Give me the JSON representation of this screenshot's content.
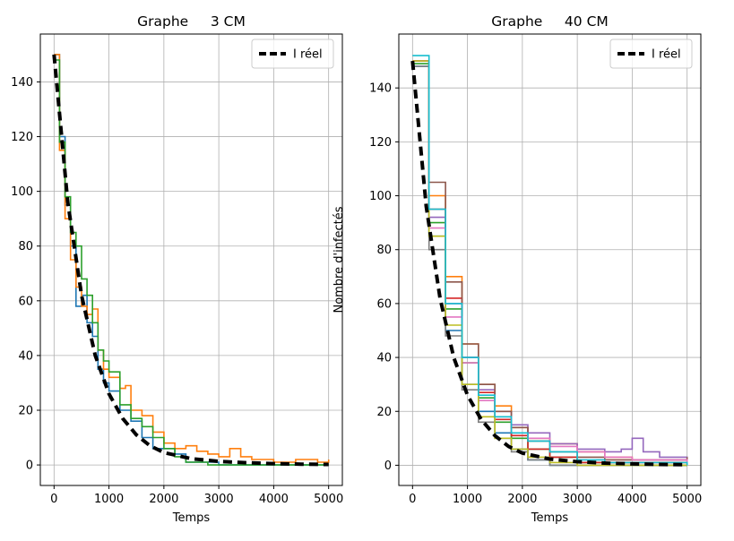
{
  "figure": {
    "background": "#ffffff"
  },
  "chart_data": [
    {
      "type": "line",
      "title": "Graphe     3 CM",
      "xlabel": "Temps",
      "ylabel": "",
      "xlim": [
        -250,
        5250
      ],
      "ylim": [
        -7.5,
        157.5
      ],
      "xticks": [
        0,
        1000,
        2000,
        3000,
        4000,
        5000
      ],
      "yticks": [
        0,
        20,
        40,
        60,
        80,
        100,
        120,
        140
      ],
      "grid": true,
      "legend": {
        "position": "top-right",
        "entries": [
          "I réel"
        ]
      },
      "reference": {
        "name": "I réel",
        "color": "#000000",
        "style": "dashed",
        "x": [
          0,
          250,
          500,
          750,
          1000,
          1250,
          1500,
          1750,
          2000,
          2500,
          3000,
          3500,
          4000,
          4500,
          5000
        ],
        "y": [
          150,
          96,
          62,
          40,
          26,
          17,
          11,
          7,
          4.5,
          2.3,
          1.3,
          0.8,
          0.5,
          0.3,
          0.2
        ]
      },
      "series": [
        {
          "color": "#1f77b4",
          "x": [
            0,
            100,
            200,
            300,
            400,
            500,
            600,
            700,
            800,
            900,
            1000,
            1200,
            1400,
            1600,
            1800,
            2000,
            2200,
            2400,
            2600,
            3000,
            3500,
            4000,
            5000
          ],
          "y": [
            150,
            120,
            95,
            80,
            58,
            62,
            52,
            47,
            35,
            30,
            27,
            20,
            16,
            10,
            6,
            6,
            4,
            1,
            1,
            0,
            0,
            0,
            0
          ]
        },
        {
          "color": "#ff7f0e",
          "x": [
            0,
            100,
            200,
            300,
            400,
            500,
            600,
            700,
            800,
            900,
            1000,
            1200,
            1300,
            1400,
            1600,
            1800,
            2000,
            2200,
            2400,
            2600,
            2800,
            3000,
            3200,
            3400,
            3600,
            3800,
            4000,
            4400,
            4800,
            5000
          ],
          "y": [
            150,
            115,
            90,
            75,
            65,
            58,
            55,
            57,
            42,
            35,
            32,
            28,
            29,
            20,
            18,
            12,
            8,
            6,
            7,
            5,
            4,
            3,
            6,
            3,
            2,
            2,
            1,
            2,
            1,
            2
          ]
        },
        {
          "color": "#2ca02c",
          "x": [
            0,
            100,
            200,
            300,
            400,
            500,
            600,
            700,
            800,
            900,
            1000,
            1200,
            1400,
            1600,
            1800,
            2000,
            2200,
            2400,
            2800,
            3200,
            4000,
            5000
          ],
          "y": [
            148,
            118,
            98,
            85,
            80,
            68,
            62,
            52,
            42,
            38,
            34,
            22,
            17,
            14,
            10,
            6,
            3,
            1,
            0,
            0,
            0,
            0
          ]
        }
      ]
    },
    {
      "type": "line",
      "title": "Graphe     40 CM",
      "xlabel": "Temps",
      "ylabel": "Nombre d'infectés",
      "xlim": [
        -250,
        5250
      ],
      "ylim": [
        -7.5,
        160
      ],
      "xticks": [
        0,
        1000,
        2000,
        3000,
        4000,
        5000
      ],
      "yticks": [
        0,
        20,
        40,
        60,
        80,
        100,
        120,
        140
      ],
      "grid": true,
      "legend": {
        "position": "top-right",
        "entries": [
          "I réel"
        ]
      },
      "reference": {
        "name": "I réel",
        "color": "#000000",
        "style": "dashed",
        "x": [
          0,
          250,
          500,
          750,
          1000,
          1250,
          1500,
          1750,
          2000,
          2500,
          3000,
          3500,
          4000,
          4500,
          5000
        ],
        "y": [
          150,
          96,
          62,
          40,
          26,
          17,
          11,
          7,
          4.5,
          2.3,
          1.3,
          0.8,
          0.5,
          0.3,
          0.2
        ]
      },
      "series": [
        {
          "color": "#1f77b4",
          "x": [
            0,
            300,
            600,
            900,
            1200,
            1500,
            1800,
            2100,
            2500,
            3000,
            5000
          ],
          "y": [
            148,
            85,
            50,
            30,
            20,
            12,
            6,
            2,
            0,
            0,
            0
          ]
        },
        {
          "color": "#ff7f0e",
          "x": [
            0,
            300,
            600,
            900,
            1200,
            1500,
            1800,
            2100,
            2500,
            3000,
            3500,
            4000,
            5000
          ],
          "y": [
            150,
            100,
            70,
            45,
            30,
            22,
            14,
            10,
            8,
            5,
            3,
            2,
            1
          ]
        },
        {
          "color": "#2ca02c",
          "x": [
            0,
            300,
            600,
            900,
            1200,
            1500,
            1800,
            2100,
            2500,
            3000,
            4000,
            5000
          ],
          "y": [
            149,
            90,
            58,
            38,
            25,
            16,
            10,
            6,
            3,
            1,
            0,
            0
          ]
        },
        {
          "color": "#d62728",
          "x": [
            0,
            300,
            600,
            900,
            1200,
            1500,
            1800,
            2100,
            2500,
            3000,
            5000
          ],
          "y": [
            150,
            95,
            62,
            40,
            27,
            17,
            11,
            6,
            3,
            1,
            0
          ]
        },
        {
          "color": "#9467bd",
          "x": [
            0,
            300,
            600,
            900,
            1200,
            1500,
            1800,
            2100,
            2500,
            3000,
            3500,
            3800,
            4000,
            4200,
            4500,
            5000
          ],
          "y": [
            150,
            92,
            60,
            40,
            28,
            20,
            15,
            12,
            8,
            6,
            5,
            6,
            10,
            5,
            3,
            2
          ]
        },
        {
          "color": "#8c564b",
          "x": [
            0,
            300,
            600,
            900,
            1200,
            1500,
            1800,
            2100,
            2500,
            3000,
            3500,
            4000,
            5000
          ],
          "y": [
            150,
            105,
            68,
            45,
            30,
            20,
            14,
            9,
            5,
            3,
            2,
            2,
            3
          ]
        },
        {
          "color": "#e377c2",
          "x": [
            0,
            300,
            600,
            900,
            1200,
            1500,
            1800,
            2100,
            2500,
            3000,
            3500,
            4000,
            5000
          ],
          "y": [
            150,
            88,
            55,
            38,
            24,
            18,
            12,
            10,
            7,
            5,
            3,
            2,
            1
          ]
        },
        {
          "color": "#7f7f7f",
          "x": [
            0,
            300,
            600,
            900,
            1200,
            1500,
            1800,
            2100,
            2500,
            3000,
            5000
          ],
          "y": [
            148,
            80,
            48,
            28,
            16,
            10,
            5,
            2,
            0,
            0,
            0
          ]
        },
        {
          "color": "#bcbd22",
          "x": [
            0,
            300,
            600,
            900,
            1200,
            1500,
            1800,
            2100,
            2500,
            3000,
            5000
          ],
          "y": [
            150,
            85,
            52,
            30,
            18,
            10,
            6,
            3,
            1,
            0,
            0
          ]
        },
        {
          "color": "#17becf",
          "x": [
            0,
            300,
            600,
            900,
            1200,
            1500,
            1800,
            2100,
            2500,
            3000,
            3500,
            4000,
            5000
          ],
          "y": [
            152,
            95,
            60,
            40,
            26,
            18,
            12,
            9,
            5,
            2,
            1,
            1,
            0
          ]
        }
      ]
    }
  ]
}
